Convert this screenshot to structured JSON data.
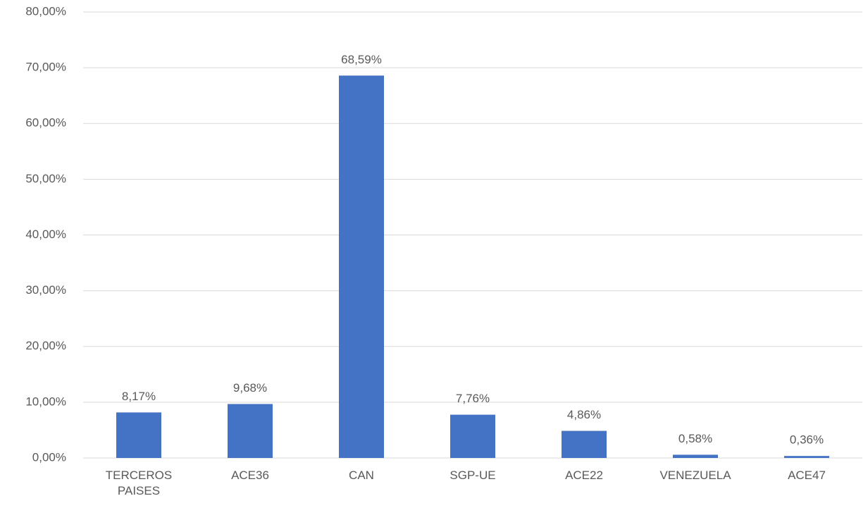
{
  "chart_data": {
    "type": "bar",
    "categories": [
      "TERCEROS PAISES",
      "ACE36",
      "CAN",
      "SGP-UE",
      "ACE22",
      "VENEZUELA",
      "ACE47"
    ],
    "values": [
      8.17,
      9.68,
      68.59,
      7.76,
      4.86,
      0.58,
      0.36
    ],
    "value_labels": [
      "8,17%",
      "9,68%",
      "68,59%",
      "7,76%",
      "4,86%",
      "0,58%",
      "0,36%"
    ],
    "color": "#4472c4",
    "ylim": [
      0,
      80
    ],
    "yticks": [
      {
        "value": 0,
        "label": "0,00%"
      },
      {
        "value": 10,
        "label": "10,00%"
      },
      {
        "value": 20,
        "label": "20,00%"
      },
      {
        "value": 30,
        "label": "30,00%"
      },
      {
        "value": 40,
        "label": "40,00%"
      },
      {
        "value": 50,
        "label": "50,00%"
      },
      {
        "value": 60,
        "label": "60,00%"
      },
      {
        "value": 70,
        "label": "70,00%"
      },
      {
        "value": 80,
        "label": "80,00%"
      }
    ],
    "grid": true
  }
}
